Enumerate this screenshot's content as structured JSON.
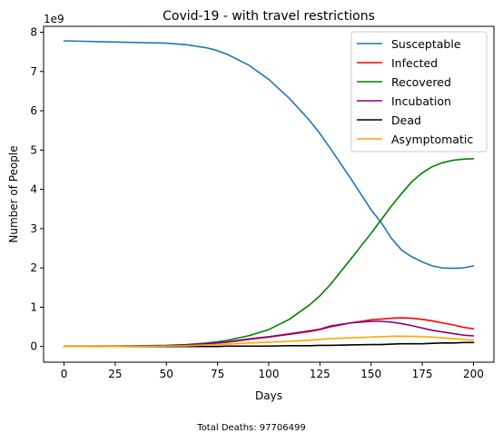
{
  "chart_data": {
    "type": "line",
    "title": "Covid-19 - with travel restrictions",
    "xlabel": "Days",
    "ylabel": "Number of People",
    "y_scale_label": "1e9",
    "xlim": [
      -10,
      210
    ],
    "ylim": [
      -0.4,
      8.15
    ],
    "x_ticks": [
      0,
      25,
      50,
      75,
      100,
      125,
      150,
      175,
      200
    ],
    "y_ticks": [
      0,
      1,
      2,
      3,
      4,
      5,
      6,
      7,
      8
    ],
    "legend_position": "top-right",
    "x": [
      0,
      25,
      50,
      60,
      70,
      75,
      80,
      90,
      100,
      110,
      120,
      125,
      130,
      140,
      150,
      155,
      160,
      165,
      170,
      175,
      180,
      185,
      190,
      195,
      200
    ],
    "series": [
      {
        "name": "Susceptable",
        "color": "#1f77b4",
        "values": [
          7.78,
          7.75,
          7.72,
          7.68,
          7.6,
          7.53,
          7.43,
          7.17,
          6.8,
          6.32,
          5.75,
          5.42,
          5.05,
          4.28,
          3.48,
          3.15,
          2.75,
          2.45,
          2.28,
          2.15,
          2.05,
          2.0,
          1.99,
          2.0,
          2.05
        ]
      },
      {
        "name": "Infected",
        "color": "#ff0000",
        "values": [
          0.0,
          0.0,
          0.02,
          0.04,
          0.07,
          0.09,
          0.11,
          0.18,
          0.24,
          0.31,
          0.38,
          0.43,
          0.5,
          0.6,
          0.68,
          0.7,
          0.72,
          0.73,
          0.72,
          0.69,
          0.65,
          0.6,
          0.55,
          0.49,
          0.45
        ]
      },
      {
        "name": "Recovered",
        "color": "#008000",
        "values": [
          0.0,
          0.01,
          0.03,
          0.05,
          0.09,
          0.12,
          0.16,
          0.27,
          0.43,
          0.69,
          1.06,
          1.29,
          1.57,
          2.22,
          2.88,
          3.23,
          3.58,
          3.9,
          4.2,
          4.42,
          4.58,
          4.68,
          4.74,
          4.77,
          4.78
        ]
      },
      {
        "name": "Incubation",
        "color": "#800080",
        "values": [
          0.0,
          0.0,
          0.02,
          0.04,
          0.07,
          0.09,
          0.12,
          0.19,
          0.25,
          0.32,
          0.4,
          0.44,
          0.52,
          0.6,
          0.64,
          0.64,
          0.62,
          0.58,
          0.53,
          0.47,
          0.41,
          0.37,
          0.33,
          0.29,
          0.27
        ]
      },
      {
        "name": "Dead",
        "color": "#000000",
        "values": [
          0.0,
          0.0,
          0.0,
          0.0,
          0.0,
          0.0,
          0.01,
          0.01,
          0.01,
          0.02,
          0.02,
          0.03,
          0.03,
          0.04,
          0.05,
          0.05,
          0.06,
          0.07,
          0.07,
          0.07,
          0.08,
          0.09,
          0.09,
          0.1,
          0.1
        ]
      },
      {
        "name": "Asymptomatic",
        "color": "#ffa500",
        "values": [
          0.0,
          0.0,
          0.01,
          0.02,
          0.04,
          0.05,
          0.06,
          0.09,
          0.11,
          0.13,
          0.16,
          0.18,
          0.2,
          0.22,
          0.24,
          0.25,
          0.26,
          0.26,
          0.26,
          0.25,
          0.24,
          0.22,
          0.2,
          0.18,
          0.16
        ]
      }
    ]
  },
  "footer": {
    "total_deaths_label": "Total Deaths: 97706499"
  }
}
